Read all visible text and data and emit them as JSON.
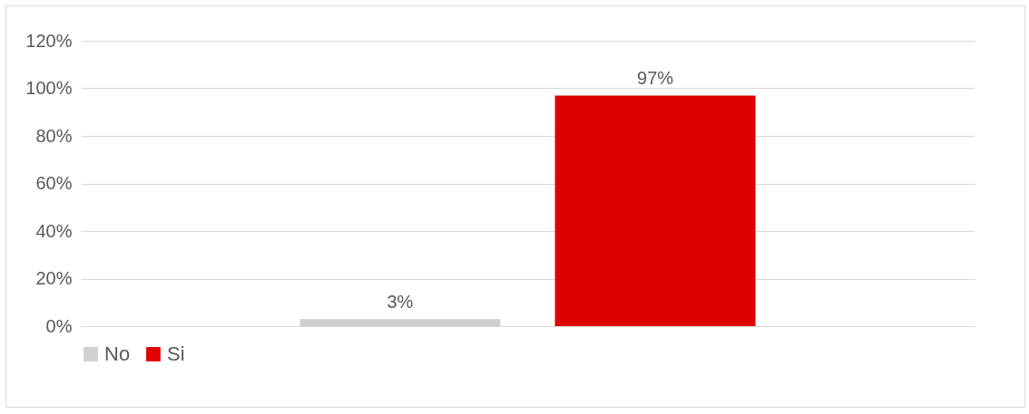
{
  "chart_data": {
    "type": "bar",
    "categories": [
      null
    ],
    "series": [
      {
        "name": "No",
        "color": "#d0d0d0",
        "values": [
          3
        ],
        "value_labels": [
          "3%"
        ]
      },
      {
        "name": "Si",
        "color": "#e00000",
        "values": [
          97
        ],
        "value_labels": [
          "97%"
        ]
      }
    ],
    "ylim": [
      0,
      120
    ],
    "yticks": [
      {
        "value": 0,
        "label": "0%"
      },
      {
        "value": 20,
        "label": "20%"
      },
      {
        "value": 40,
        "label": "40%"
      },
      {
        "value": 60,
        "label": "60%"
      },
      {
        "value": 80,
        "label": "80%"
      },
      {
        "value": 100,
        "label": "100%"
      },
      {
        "value": 120,
        "label": "120%"
      }
    ],
    "grid": "y",
    "legend": "bottom"
  }
}
